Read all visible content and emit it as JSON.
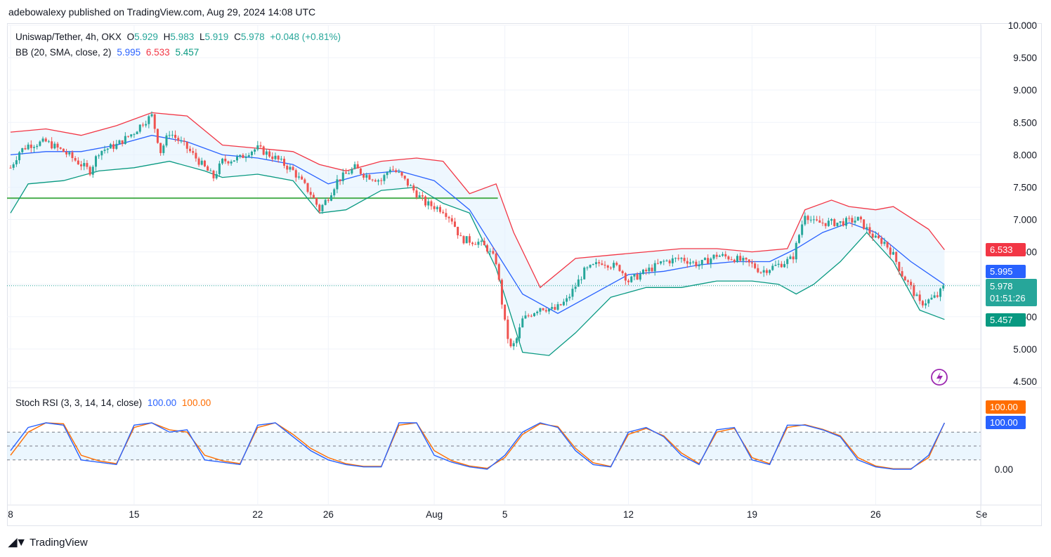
{
  "header": {
    "publisher": "adebowalexy published on TradingView.com, Aug 29, 2024 14:08 UTC"
  },
  "legend": {
    "symbol": "Uniswap/Tether, 4h, OKX",
    "o_label": "O",
    "o": "5.929",
    "h_label": "H",
    "h": "5.983",
    "l_label": "L",
    "l": "5.919",
    "c_label": "C",
    "c": "5.978",
    "change": "+0.048 (+0.81%)",
    "bb_label": "BB (20, SMA, close, 2)",
    "bb_basis": "5.995",
    "bb_upper": "6.533",
    "bb_lower": "5.457",
    "stoch_label": "Stoch RSI (3, 3, 14, 14, close)",
    "stoch_k": "100.00",
    "stoch_d": "100.00"
  },
  "price_tags": {
    "upper": "6.533",
    "basis": "5.995",
    "last": "5.978",
    "countdown": "01:51:26",
    "lower": "5.457"
  },
  "stoch_tags": {
    "d": "100.00",
    "k": "100.00"
  },
  "colors": {
    "up": "#26a69a",
    "down": "#ef5350",
    "basis": "#2962ff",
    "upper": "#f23645",
    "lower": "#089981",
    "band_fill": "#e3f2fd",
    "hline": "#4caf50",
    "stoch_k": "#2962ff",
    "stoch_d": "#ff6d00",
    "last_tag": "#26a69a",
    "lightning": "#9c27b0"
  },
  "footer": {
    "brand": "TradingView",
    "logo_icon": "tradingview-logo-icon"
  },
  "chart_data": [
    {
      "type": "candlestick",
      "title": "Uniswap/Tether, 4h, OKX",
      "ylim": [
        4.5,
        10.0
      ],
      "y_ticks": [
        "10.000",
        "9.500",
        "9.000",
        "8.500",
        "8.000",
        "7.500",
        "7.000",
        "6.500",
        "6.000",
        "5.500",
        "5.000",
        "4.500"
      ],
      "x_ticks": [
        {
          "label": "8",
          "day": 0
        },
        {
          "label": "15",
          "day": 7
        },
        {
          "label": "22",
          "day": 14
        },
        {
          "label": "26",
          "day": 18
        },
        {
          "label": "Aug",
          "day": 24
        },
        {
          "label": "5",
          "day": 28
        },
        {
          "label": "12",
          "day": 35
        },
        {
          "label": "19",
          "day": 42
        },
        {
          "label": "26",
          "day": 49
        },
        {
          "label": "Se",
          "day": 55
        }
      ],
      "horizontal_line": 7.33,
      "close_path": [
        [
          0,
          7.8
        ],
        [
          0.5,
          8.05
        ],
        [
          1,
          8.15
        ],
        [
          2,
          8.2
        ],
        [
          3,
          8.05
        ],
        [
          4,
          7.85
        ],
        [
          4.5,
          7.75
        ],
        [
          5,
          8.05
        ],
        [
          6,
          8.15
        ],
        [
          7,
          8.35
        ],
        [
          7.5,
          8.5
        ],
        [
          8,
          8.6
        ],
        [
          8.5,
          8.05
        ],
        [
          9,
          8.35
        ],
        [
          10,
          8.1
        ],
        [
          11,
          7.8
        ],
        [
          11.5,
          7.65
        ],
        [
          12,
          7.9
        ],
        [
          13,
          7.95
        ],
        [
          13.5,
          8.05
        ],
        [
          14,
          8.1
        ],
        [
          15,
          7.95
        ],
        [
          16,
          7.75
        ],
        [
          17,
          7.4
        ],
        [
          17.5,
          7.15
        ],
        [
          18,
          7.35
        ],
        [
          18.5,
          7.6
        ],
        [
          19.5,
          7.8
        ],
        [
          20,
          7.7
        ],
        [
          21,
          7.6
        ],
        [
          21.5,
          7.8
        ],
        [
          22,
          7.7
        ],
        [
          22.5,
          7.55
        ],
        [
          23.5,
          7.25
        ],
        [
          24.5,
          7.15
        ],
        [
          25,
          7.0
        ],
        [
          25.5,
          6.7
        ],
        [
          26.5,
          6.65
        ],
        [
          27,
          6.55
        ],
        [
          27.5,
          6.35
        ],
        [
          28,
          5.4
        ],
        [
          28.3,
          5.0
        ],
        [
          28.6,
          5.1
        ],
        [
          29,
          5.45
        ],
        [
          30,
          5.65
        ],
        [
          30.8,
          5.6
        ],
        [
          31.5,
          5.75
        ],
        [
          32.5,
          6.2
        ],
        [
          33.5,
          6.35
        ],
        [
          34.5,
          6.25
        ],
        [
          35,
          6.05
        ],
        [
          36,
          6.2
        ],
        [
          37,
          6.35
        ],
        [
          38,
          6.4
        ],
        [
          39,
          6.3
        ],
        [
          40,
          6.45
        ],
        [
          41,
          6.4
        ],
        [
          42,
          6.3
        ],
        [
          42.5,
          6.2
        ],
        [
          43,
          6.25
        ],
        [
          43.5,
          6.3
        ],
        [
          44.3,
          6.4
        ],
        [
          44.6,
          6.7
        ],
        [
          45,
          7.1
        ],
        [
          45.5,
          6.95
        ],
        [
          46,
          6.95
        ],
        [
          47,
          6.95
        ],
        [
          48,
          7.0
        ],
        [
          48.5,
          6.85
        ],
        [
          49,
          6.7
        ],
        [
          49.5,
          6.65
        ],
        [
          50,
          6.45
        ],
        [
          50.5,
          6.15
        ],
        [
          51,
          5.95
        ],
        [
          51.5,
          5.7
        ],
        [
          52,
          5.75
        ],
        [
          52.5,
          5.82
        ],
        [
          52.9,
          5.978
        ]
      ],
      "bollinger": {
        "basis": [
          [
            0,
            8.0
          ],
          [
            2,
            8.05
          ],
          [
            4,
            8.05
          ],
          [
            6,
            8.15
          ],
          [
            8,
            8.3
          ],
          [
            10,
            8.2
          ],
          [
            12,
            8.0
          ],
          [
            14,
            7.95
          ],
          [
            16,
            7.85
          ],
          [
            18,
            7.55
          ],
          [
            20,
            7.7
          ],
          [
            22,
            7.75
          ],
          [
            24,
            7.6
          ],
          [
            26,
            7.15
          ],
          [
            27.5,
            6.5
          ],
          [
            29,
            5.85
          ],
          [
            31,
            5.55
          ],
          [
            33,
            5.85
          ],
          [
            35,
            6.15
          ],
          [
            37,
            6.2
          ],
          [
            39,
            6.3
          ],
          [
            41,
            6.35
          ],
          [
            43,
            6.35
          ],
          [
            44.5,
            6.55
          ],
          [
            46,
            6.8
          ],
          [
            47.5,
            6.95
          ],
          [
            49,
            6.8
          ],
          [
            51,
            6.35
          ],
          [
            52.9,
            5.995
          ]
        ],
        "upper": [
          [
            0,
            8.35
          ],
          [
            2,
            8.4
          ],
          [
            4,
            8.3
          ],
          [
            6,
            8.45
          ],
          [
            8,
            8.65
          ],
          [
            10,
            8.6
          ],
          [
            12,
            8.15
          ],
          [
            14,
            8.1
          ],
          [
            16,
            8.05
          ],
          [
            17.5,
            7.85
          ],
          [
            19,
            7.75
          ],
          [
            21,
            7.9
          ],
          [
            23,
            7.95
          ],
          [
            24.5,
            7.9
          ],
          [
            26,
            7.4
          ],
          [
            27.5,
            7.55
          ],
          [
            28.5,
            6.8
          ],
          [
            30,
            5.95
          ],
          [
            32,
            6.4
          ],
          [
            34,
            6.45
          ],
          [
            36,
            6.5
          ],
          [
            38,
            6.55
          ],
          [
            40,
            6.55
          ],
          [
            42,
            6.5
          ],
          [
            44,
            6.55
          ],
          [
            45,
            7.15
          ],
          [
            46.5,
            7.3
          ],
          [
            47.5,
            7.2
          ],
          [
            49,
            7.15
          ],
          [
            50,
            7.2
          ],
          [
            52,
            6.85
          ],
          [
            52.9,
            6.533
          ]
        ],
        "lower": [
          [
            0,
            7.1
          ],
          [
            1,
            7.55
          ],
          [
            3,
            7.6
          ],
          [
            5,
            7.75
          ],
          [
            7,
            7.8
          ],
          [
            9,
            7.9
          ],
          [
            11,
            7.75
          ],
          [
            12,
            7.65
          ],
          [
            14,
            7.7
          ],
          [
            16,
            7.6
          ],
          [
            17.5,
            7.1
          ],
          [
            19,
            7.15
          ],
          [
            21,
            7.45
          ],
          [
            23,
            7.5
          ],
          [
            24.5,
            7.25
          ],
          [
            26,
            7.1
          ],
          [
            27.5,
            6.25
          ],
          [
            29,
            4.95
          ],
          [
            30.5,
            4.9
          ],
          [
            32,
            5.25
          ],
          [
            34,
            5.8
          ],
          [
            36,
            5.95
          ],
          [
            38,
            5.95
          ],
          [
            40,
            6.05
          ],
          [
            42,
            6.05
          ],
          [
            43.5,
            6.0
          ],
          [
            44.5,
            5.85
          ],
          [
            45.5,
            6.0
          ],
          [
            47,
            6.35
          ],
          [
            48.5,
            6.8
          ],
          [
            50,
            6.35
          ],
          [
            51.5,
            5.6
          ],
          [
            52.9,
            5.457
          ]
        ]
      }
    },
    {
      "type": "line",
      "title": "Stoch RSI (3, 3, 14, 14, close)",
      "ylim": [
        0,
        100
      ],
      "y_ticks": [
        "0.00"
      ],
      "bands": [
        80,
        50,
        20
      ],
      "series": [
        {
          "name": "K",
          "values": [
            [
              0,
              40
            ],
            [
              1,
              90
            ],
            [
              2,
              100
            ],
            [
              3,
              95
            ],
            [
              4,
              20
            ],
            [
              5,
              15
            ],
            [
              6,
              10
            ],
            [
              7,
              95
            ],
            [
              8,
              100
            ],
            [
              9,
              80
            ],
            [
              10,
              85
            ],
            [
              11,
              20
            ],
            [
              12,
              15
            ],
            [
              13,
              10
            ],
            [
              14,
              95
            ],
            [
              15,
              100
            ],
            [
              16,
              70
            ],
            [
              17,
              40
            ],
            [
              18,
              20
            ],
            [
              19,
              10
            ],
            [
              20,
              5
            ],
            [
              21,
              5
            ],
            [
              22,
              100
            ],
            [
              23,
              100
            ],
            [
              24,
              30
            ],
            [
              25,
              15
            ],
            [
              26,
              5
            ],
            [
              27,
              0
            ],
            [
              28,
              30
            ],
            [
              29,
              80
            ],
            [
              30,
              100
            ],
            [
              31,
              90
            ],
            [
              32,
              40
            ],
            [
              33,
              10
            ],
            [
              34,
              5
            ],
            [
              35,
              80
            ],
            [
              36,
              90
            ],
            [
              37,
              70
            ],
            [
              38,
              30
            ],
            [
              39,
              10
            ],
            [
              40,
              85
            ],
            [
              41,
              90
            ],
            [
              42,
              20
            ],
            [
              43,
              10
            ],
            [
              44,
              95
            ],
            [
              45,
              95
            ],
            [
              46,
              85
            ],
            [
              47,
              70
            ],
            [
              48,
              20
            ],
            [
              49,
              5
            ],
            [
              50,
              0
            ],
            [
              51,
              0
            ],
            [
              52,
              30
            ],
            [
              52.9,
              100
            ]
          ]
        },
        {
          "name": "D",
          "values": [
            [
              0,
              30
            ],
            [
              1,
              80
            ],
            [
              2,
              100
            ],
            [
              3,
              98
            ],
            [
              4,
              30
            ],
            [
              5,
              18
            ],
            [
              6,
              12
            ],
            [
              7,
              90
            ],
            [
              8,
              100
            ],
            [
              9,
              85
            ],
            [
              10,
              80
            ],
            [
              11,
              30
            ],
            [
              12,
              18
            ],
            [
              13,
              12
            ],
            [
              14,
              90
            ],
            [
              15,
              100
            ],
            [
              16,
              75
            ],
            [
              17,
              45
            ],
            [
              18,
              25
            ],
            [
              19,
              12
            ],
            [
              20,
              6
            ],
            [
              21,
              6
            ],
            [
              22,
              95
            ],
            [
              23,
              100
            ],
            [
              24,
              40
            ],
            [
              25,
              18
            ],
            [
              26,
              7
            ],
            [
              27,
              2
            ],
            [
              28,
              25
            ],
            [
              29,
              75
            ],
            [
              30,
              98
            ],
            [
              31,
              92
            ],
            [
              32,
              45
            ],
            [
              33,
              14
            ],
            [
              34,
              6
            ],
            [
              35,
              75
            ],
            [
              36,
              88
            ],
            [
              37,
              72
            ],
            [
              38,
              35
            ],
            [
              39,
              12
            ],
            [
              40,
              80
            ],
            [
              41,
              88
            ],
            [
              42,
              25
            ],
            [
              43,
              12
            ],
            [
              44,
              90
            ],
            [
              45,
              96
            ],
            [
              46,
              86
            ],
            [
              47,
              72
            ],
            [
              48,
              25
            ],
            [
              49,
              7
            ],
            [
              50,
              1
            ],
            [
              51,
              1
            ],
            [
              52,
              25
            ],
            [
              52.9,
              100
            ]
          ]
        }
      ]
    }
  ]
}
